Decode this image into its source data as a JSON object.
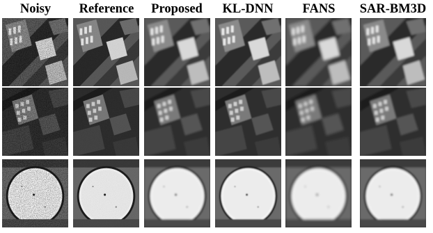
{
  "columns": [
    "Noisy",
    "Reference",
    "Proposed",
    "KL-DNN",
    "FANS",
    "SAR-BM3D"
  ],
  "rows": [
    {
      "scene": "urban-buildings-diagonal"
    },
    {
      "scene": "urban-buildings-dark"
    },
    {
      "scene": "circular-tank"
    }
  ]
}
